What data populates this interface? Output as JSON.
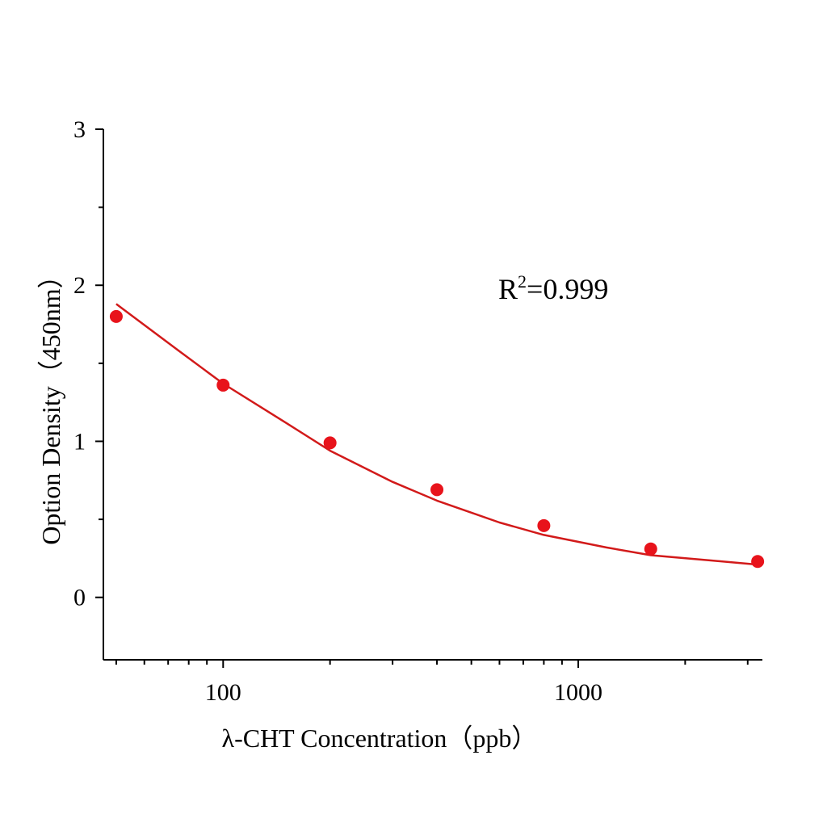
{
  "chart_data": {
    "type": "scatter",
    "title": "",
    "xlabel": "λ-CHT Concentration（ppb）",
    "ylabel": "Option Density（450nm）",
    "x_scale": "log",
    "xlim": [
      46,
      3300
    ],
    "ylim": [
      -0.4,
      3
    ],
    "x_major_ticks": [
      100,
      1000
    ],
    "x_tick_labels": [
      "100",
      "1000"
    ],
    "y_major_ticks": [
      0,
      1,
      2,
      3
    ],
    "y_tick_labels": [
      "0",
      "1",
      "2",
      "3"
    ],
    "grid": false,
    "legend": "none",
    "series": [
      {
        "kind": "points",
        "x": [
          50,
          100,
          200,
          400,
          800,
          1600,
          3200
        ],
        "y": [
          1.8,
          1.36,
          0.99,
          0.69,
          0.46,
          0.31,
          0.23
        ]
      },
      {
        "kind": "fit-curve",
        "x": [
          50,
          75,
          100,
          150,
          200,
          300,
          400,
          600,
          800,
          1200,
          1600,
          2400,
          3200
        ],
        "y": [
          1.88,
          1.58,
          1.37,
          1.12,
          0.94,
          0.74,
          0.62,
          0.48,
          0.4,
          0.32,
          0.27,
          0.235,
          0.21
        ]
      }
    ],
    "annotation": {
      "text_main": "R",
      "text_sup": "2",
      "text_rest": "=0.999"
    },
    "colors": {
      "points": "#e8131b",
      "curve": "#d21a1a",
      "axis": "#000000"
    }
  }
}
